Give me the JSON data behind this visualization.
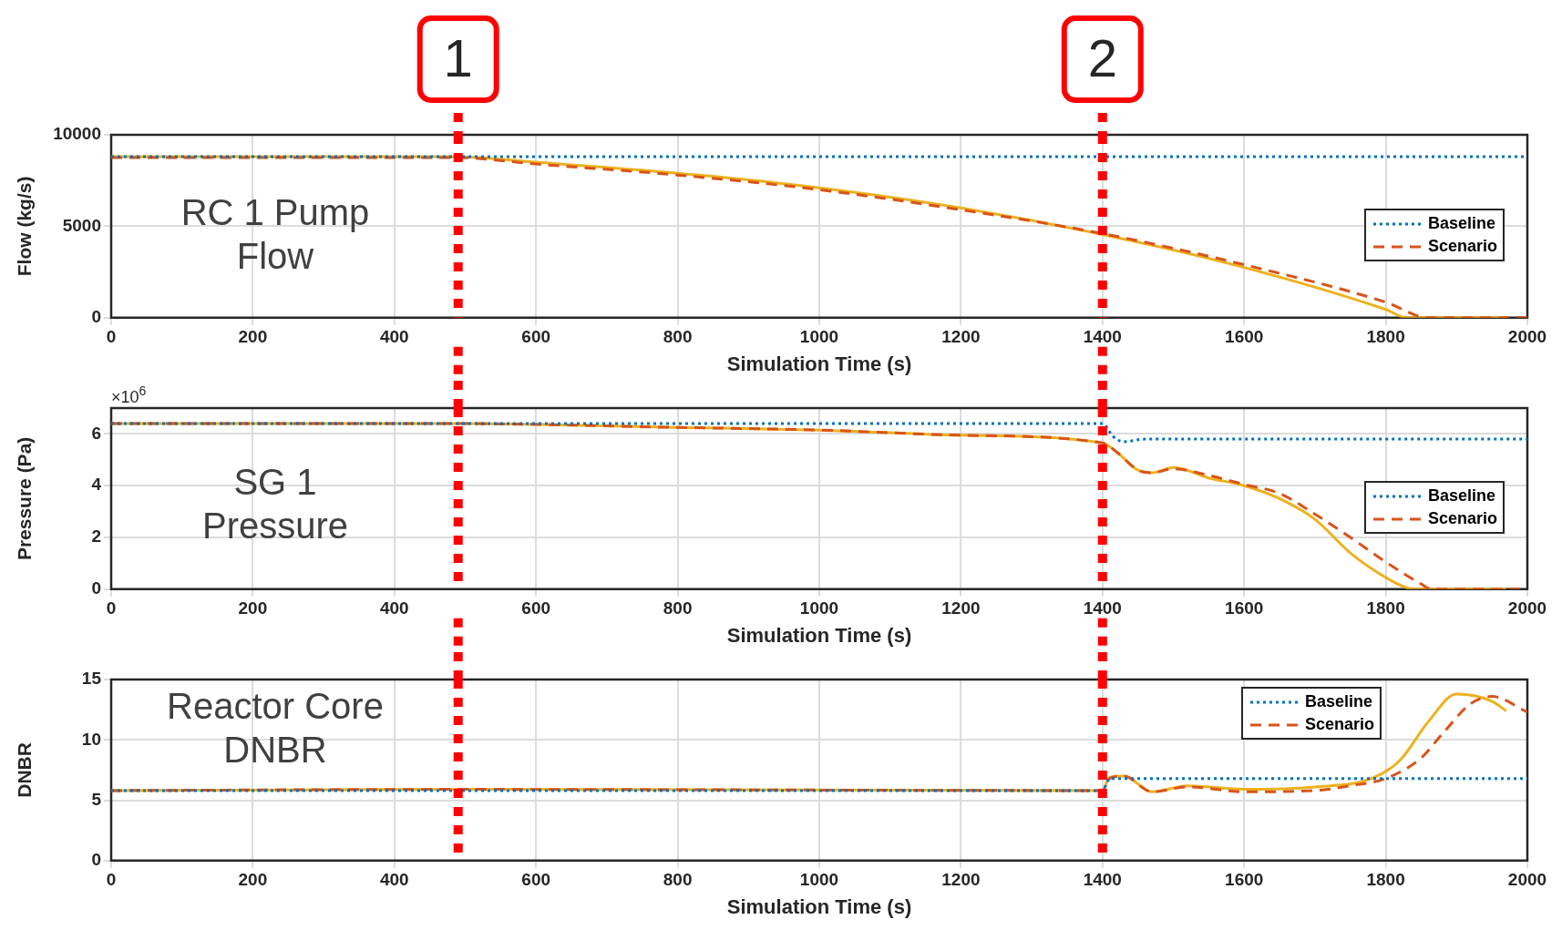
{
  "chart_data": [
    {
      "type": "line",
      "xlabel": "Simulation Time (s)",
      "ylabel": "Flow (kg/s)",
      "xlim": [
        0,
        2000
      ],
      "xticks": [
        0,
        200,
        400,
        600,
        800,
        1000,
        1200,
        1400,
        1600,
        1800,
        2000
      ],
      "ylim": [
        0,
        10000
      ],
      "yticks": [
        0,
        5000,
        10000
      ],
      "grid": true,
      "legend": "right",
      "marker": "none",
      "annotations": [
        "RC 1 Pump Flow",
        {
          "text": "1",
          "x": 490
        },
        {
          "text": "2",
          "x": 1400
        }
      ],
      "ref_lines": [
        {
          "axis": "x",
          "value": 490,
          "label": null,
          "color": "#ff0000",
          "line_style": "dotted"
        },
        {
          "axis": "x",
          "value": 1400,
          "label": null,
          "color": "#ff0000",
          "line_style": "dotted"
        }
      ],
      "series": [
        {
          "name": "Baseline",
          "color": "#0072bd",
          "line_style": "dotted",
          "x": [
            0,
            2000
          ],
          "values": [
            8800,
            8800
          ]
        },
        {
          "name": "Scenario",
          "color": "#d95319",
          "line_style": "dashed",
          "x": [
            0,
            490,
            600,
            800,
            1000,
            1200,
            1400,
            1600,
            1800,
            1860,
            2000
          ],
          "values": [
            8750,
            8750,
            8400,
            7800,
            7000,
            5900,
            4600,
            2900,
            850,
            0,
            0
          ]
        },
        {
          "color": "#edb120",
          "line_style": "solid",
          "x": [
            0,
            490,
            600,
            800,
            1000,
            1200,
            1400,
            1600,
            1800,
            1830,
            1970
          ],
          "values": [
            8800,
            8800,
            8500,
            7900,
            7100,
            6000,
            4550,
            2750,
            450,
            0,
            0
          ]
        }
      ]
    },
    {
      "type": "line",
      "xlabel": "Simulation Time (s)",
      "ylabel": "Pressure (Pa)",
      "xlim": [
        0,
        2000
      ],
      "xticks": [
        0,
        200,
        400,
        600,
        800,
        1000,
        1200,
        1400,
        1600,
        1800,
        2000
      ],
      "ylim": [
        0,
        7
      ],
      "yticks": [
        0,
        2,
        4,
        6
      ],
      "grid": true,
      "legend": "right",
      "marker": "none",
      "annotations": [
        "SG 1 Pressure",
        "×10$^{6}$"
      ],
      "ref_lines": [
        {
          "axis": "x",
          "value": 490,
          "label": null,
          "color": "#ff0000",
          "line_style": "dotted"
        },
        {
          "axis": "x",
          "value": 1400,
          "label": null,
          "color": "#ff0000",
          "line_style": "dotted"
        }
      ],
      "series": [
        {
          "name": "Baseline",
          "color": "#0072bd",
          "line_style": "dotted",
          "x": [
            0,
            1400,
            1415,
            1430,
            1460,
            2000
          ],
          "values": [
            6.4,
            6.4,
            5.9,
            5.7,
            5.8,
            5.8
          ]
        },
        {
          "name": "Scenario",
          "color": "#d95319",
          "line_style": "dashed",
          "x": [
            0,
            490,
            800,
            1000,
            1200,
            1400,
            1420,
            1450,
            1470,
            1500,
            1550,
            1600,
            1650,
            1700,
            1750,
            1800,
            1850,
            1865,
            2000
          ],
          "values": [
            6.4,
            6.4,
            6.25,
            6.15,
            5.95,
            5.65,
            5.3,
            4.6,
            4.5,
            4.65,
            4.4,
            4.05,
            3.7,
            2.9,
            2.0,
            1.05,
            0.2,
            0,
            0
          ]
        },
        {
          "color": "#edb120",
          "line_style": "solid",
          "x": [
            0,
            490,
            800,
            1000,
            1200,
            1400,
            1420,
            1450,
            1470,
            1500,
            1550,
            1600,
            1650,
            1700,
            1750,
            1800,
            1830,
            1840,
            1970
          ],
          "values": [
            6.4,
            6.4,
            6.25,
            6.15,
            5.95,
            5.65,
            5.3,
            4.6,
            4.5,
            4.7,
            4.3,
            4.0,
            3.5,
            2.7,
            1.4,
            0.45,
            0.05,
            0,
            0
          ]
        }
      ]
    },
    {
      "type": "line",
      "xlabel": "Simulation Time (s)",
      "ylabel": "DNBR",
      "xlim": [
        0,
        2000
      ],
      "xticks": [
        0,
        200,
        400,
        600,
        800,
        1000,
        1200,
        1400,
        1600,
        1800,
        2000
      ],
      "ylim": [
        0,
        15
      ],
      "yticks": [
        0,
        5,
        10,
        15
      ],
      "grid": true,
      "legend": "top right",
      "marker": "none",
      "annotations": [
        "Reactor Core DNBR"
      ],
      "ref_lines": [
        {
          "axis": "x",
          "value": 490,
          "label": null,
          "color": "#ff0000",
          "line_style": "dotted"
        },
        {
          "axis": "x",
          "value": 1400,
          "label": null,
          "color": "#ff0000",
          "line_style": "dotted"
        }
      ],
      "series": [
        {
          "name": "Baseline",
          "color": "#0072bd",
          "line_style": "dotted",
          "x": [
            0,
            1400,
            1410,
            2000
          ],
          "values": [
            5.8,
            5.8,
            6.8,
            6.8
          ]
        },
        {
          "name": "Scenario",
          "color": "#d95319",
          "line_style": "dashed",
          "x": [
            0,
            490,
            1400,
            1410,
            1430,
            1470,
            1520,
            1600,
            1700,
            1750,
            1800,
            1850,
            1880,
            1920,
            1950,
            2000
          ],
          "values": [
            5.8,
            5.9,
            5.8,
            6.8,
            7.0,
            5.7,
            6.1,
            5.7,
            5.8,
            6.2,
            6.8,
            8.5,
            10.5,
            13.0,
            13.6,
            12.3
          ]
        },
        {
          "color": "#edb120",
          "line_style": "solid",
          "x": [
            0,
            490,
            1400,
            1410,
            1430,
            1470,
            1520,
            1600,
            1700,
            1780,
            1820,
            1860,
            1900,
            1950,
            1970
          ],
          "values": [
            5.8,
            5.9,
            5.8,
            6.9,
            7.0,
            5.7,
            6.2,
            5.9,
            6.1,
            6.8,
            8.3,
            11.5,
            13.8,
            13.2,
            12.4
          ]
        }
      ]
    }
  ]
}
